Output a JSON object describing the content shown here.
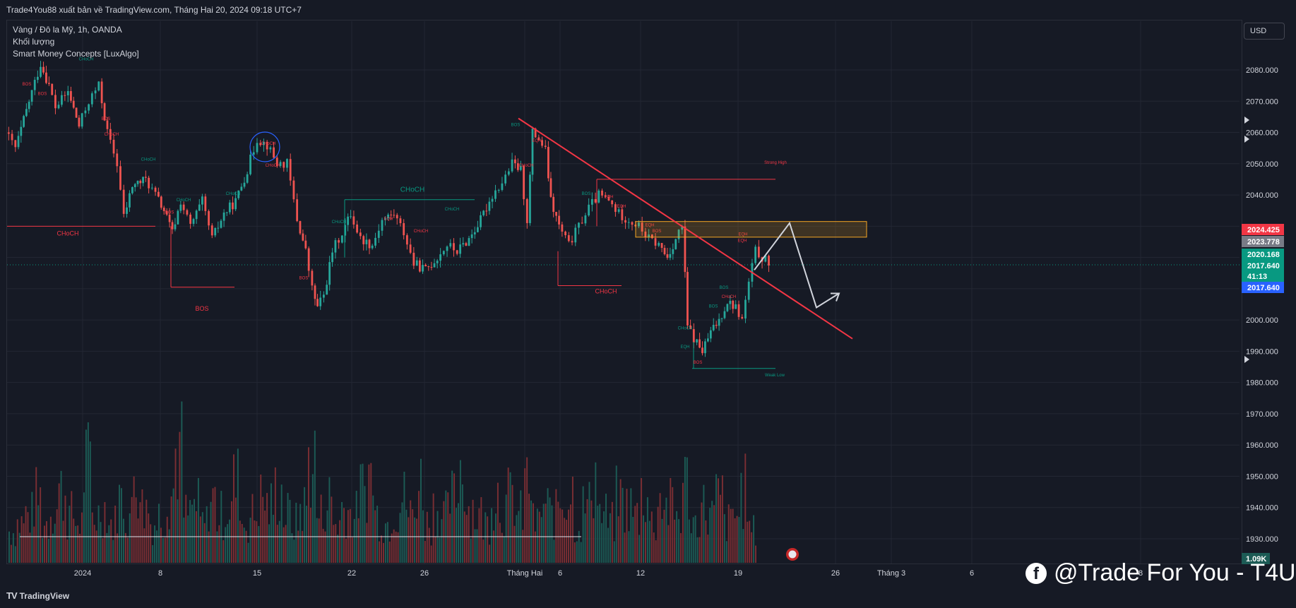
{
  "header": {
    "published_line": "Trade4You88 xuất bản về TradingView.com, Tháng Hai 20, 2024 09:18 UTC+7"
  },
  "legend": {
    "symbol": "Vàng / Đô la Mỹ, 1h, OANDA",
    "volume": "Khối lượng",
    "indicator": "Smart Money Concepts [LuxAlgo]"
  },
  "currency_button": "USD",
  "footer": {
    "brand": "TradingView",
    "brand_mark": "TV"
  },
  "watermark": {
    "icon": "facebook-icon",
    "text": "@Trade For You - T4U"
  },
  "colors": {
    "background": "#161a25",
    "up": "#26a69a",
    "down": "#ef5350",
    "trendline": "#f23645",
    "zone": "#f5a623",
    "projection": "#d1d4dc"
  },
  "chart_data": {
    "type": "candlestick",
    "y_axis": {
      "min": 1920,
      "max": 2090,
      "ticks": [
        "2080.000",
        "2070.000",
        "2060.000",
        "2050.000",
        "2040.000",
        "2030.000",
        "2020.000",
        "2010.000",
        "2000.000",
        "1990.000",
        "1980.000",
        "1970.000",
        "1960.000",
        "1950.000",
        "1940.000",
        "1930.000"
      ]
    },
    "x_axis": {
      "ticks": [
        "2024",
        "8",
        "15",
        "22",
        "26",
        "Tháng Hai",
        "6",
        "12",
        "19",
        "26",
        "Tháng 3",
        "6",
        "8"
      ]
    },
    "price_labels": [
      {
        "value": "2024.425",
        "color": "#f23645"
      },
      {
        "value": "2023.778",
        "color": "#787b86"
      },
      {
        "value": "2020.168",
        "color": "#089981"
      },
      {
        "value": "2017.640",
        "color": "#089981"
      },
      {
        "value": "41:13",
        "color": "#089981"
      },
      {
        "value": "2017.640",
        "color": "#2962ff"
      }
    ],
    "volume_label": "1.09K",
    "close": 2017.64,
    "price_path": [
      [
        0,
        2060
      ],
      [
        12,
        2055
      ],
      [
        28,
        2070
      ],
      [
        42,
        2082
      ],
      [
        52,
        2075
      ],
      [
        60,
        2068
      ],
      [
        75,
        2073
      ],
      [
        88,
        2062
      ],
      [
        100,
        2070
      ],
      [
        112,
        2075
      ],
      [
        122,
        2060
      ],
      [
        134,
        2050
      ],
      [
        142,
        2033
      ],
      [
        152,
        2043
      ],
      [
        168,
        2045
      ],
      [
        180,
        2040
      ],
      [
        190,
        2035
      ],
      [
        200,
        2028
      ],
      [
        210,
        2038
      ],
      [
        222,
        2030
      ],
      [
        236,
        2038
      ],
      [
        248,
        2026
      ],
      [
        262,
        2034
      ],
      [
        276,
        2038
      ],
      [
        290,
        2048
      ],
      [
        302,
        2058
      ],
      [
        314,
        2056
      ],
      [
        326,
        2050
      ],
      [
        338,
        2050
      ],
      [
        350,
        2032
      ],
      [
        360,
        2022
      ],
      [
        368,
        2010
      ],
      [
        374,
        2004
      ],
      [
        382,
        2008
      ],
      [
        392,
        2022
      ],
      [
        404,
        2028
      ],
      [
        414,
        2034
      ],
      [
        426,
        2026
      ],
      [
        440,
        2024
      ],
      [
        452,
        2032
      ],
      [
        466,
        2034
      ],
      [
        478,
        2028
      ],
      [
        490,
        2018
      ],
      [
        504,
        2016
      ],
      [
        518,
        2020
      ],
      [
        530,
        2024
      ],
      [
        542,
        2022
      ],
      [
        556,
        2026
      ],
      [
        570,
        2032
      ],
      [
        584,
        2040
      ],
      [
        596,
        2044
      ],
      [
        608,
        2050
      ],
      [
        618,
        2048
      ],
      [
        626,
        2032
      ],
      [
        632,
        2060
      ],
      [
        640,
        2058
      ],
      [
        648,
        2054
      ],
      [
        654,
        2038
      ],
      [
        664,
        2030
      ],
      [
        676,
        2024
      ],
      [
        688,
        2030
      ],
      [
        700,
        2036
      ],
      [
        712,
        2040
      ],
      [
        724,
        2038
      ],
      [
        736,
        2034
      ],
      [
        748,
        2032
      ],
      [
        760,
        2030
      ],
      [
        772,
        2026
      ],
      [
        784,
        2024
      ],
      [
        794,
        2020
      ],
      [
        804,
        2026
      ],
      [
        812,
        2030
      ],
      [
        818,
        1998
      ],
      [
        826,
        1994
      ],
      [
        836,
        1990
      ],
      [
        846,
        1996
      ],
      [
        856,
        2000
      ],
      [
        866,
        2006
      ],
      [
        876,
        2004
      ],
      [
        884,
        2000
      ],
      [
        892,
        2012
      ],
      [
        900,
        2022
      ],
      [
        908,
        2020
      ],
      [
        916,
        2018
      ]
    ],
    "volume_series": [
      4,
      5,
      6,
      8,
      5,
      7,
      9,
      6,
      5,
      12,
      6,
      7,
      5,
      8,
      6,
      11,
      7,
      5,
      6,
      9,
      14,
      6,
      7,
      5,
      8,
      6,
      7,
      10,
      5,
      6,
      8,
      7,
      9,
      6,
      5,
      7,
      13,
      6,
      8,
      5,
      7,
      6,
      9,
      11,
      6,
      5,
      7,
      8,
      6,
      10,
      5,
      7,
      6,
      8,
      12,
      7,
      6,
      5,
      9,
      7,
      8,
      6,
      10,
      5,
      7,
      6,
      8,
      9,
      5,
      7,
      11,
      6,
      5,
      8,
      7,
      6,
      9,
      5,
      8,
      7,
      6,
      10,
      5,
      7,
      6,
      8,
      5,
      6,
      9,
      4
    ],
    "annotations": [
      {
        "text": "CHoCH",
        "color": "#f23645"
      },
      {
        "text": "BOS",
        "color": "#f23645"
      },
      {
        "text": "CHoCH",
        "color": "#089981"
      },
      {
        "text": "CHoCH",
        "color": "#f23645"
      },
      {
        "text": "Strong High",
        "color": "#f23645"
      },
      {
        "text": "Weak Low",
        "color": "#089981"
      },
      {
        "text": "EQH",
        "color": "#f23645"
      }
    ],
    "trendline": {
      "from": [
        2024,
        2064.5
      ],
      "to": [
        2040,
        1994
      ]
    },
    "zone": {
      "top": 2031.5,
      "bottom": 2026.5
    },
    "projection": [
      [
        2024,
        2016
      ],
      [
        2034,
        2031
      ],
      [
        2040,
        2004
      ],
      [
        2046,
        2008.5
      ]
    ]
  }
}
